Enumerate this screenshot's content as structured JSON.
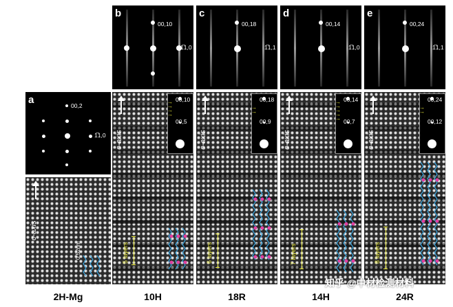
{
  "panels": [
    {
      "letter": "a",
      "spot_top": "00,2",
      "spot_side": "1̅1,0",
      "caption": "2H-Mg",
      "scale": "0.52nm"
    },
    {
      "letter": "b",
      "spot_top": "00,10",
      "spot_side": "1̅1,0",
      "inset_top": "00,10",
      "inset_mid": "00,5",
      "layers": "5 layers",
      "caption": "10H"
    },
    {
      "letter": "c",
      "spot_top": "00,18",
      "spot_side": "1̅1,1",
      "inset_top": "00,18",
      "inset_mid": "00,9",
      "layers": "6 layers",
      "caption": "18R"
    },
    {
      "letter": "d",
      "spot_top": "00,14",
      "spot_side": "1̅1,0",
      "inset_top": "00,14",
      "inset_mid": "00,7",
      "layers": "7 layers",
      "caption": "14H"
    },
    {
      "letter": "e",
      "spot_top": "00,24",
      "spot_side": "1̅1,1",
      "inset_top": "00,24",
      "inset_mid": "00,12",
      "layers": "8 layers",
      "caption": "24R"
    }
  ],
  "axis_label": "c-axis",
  "watermark": "知乎 @中材检测材料"
}
